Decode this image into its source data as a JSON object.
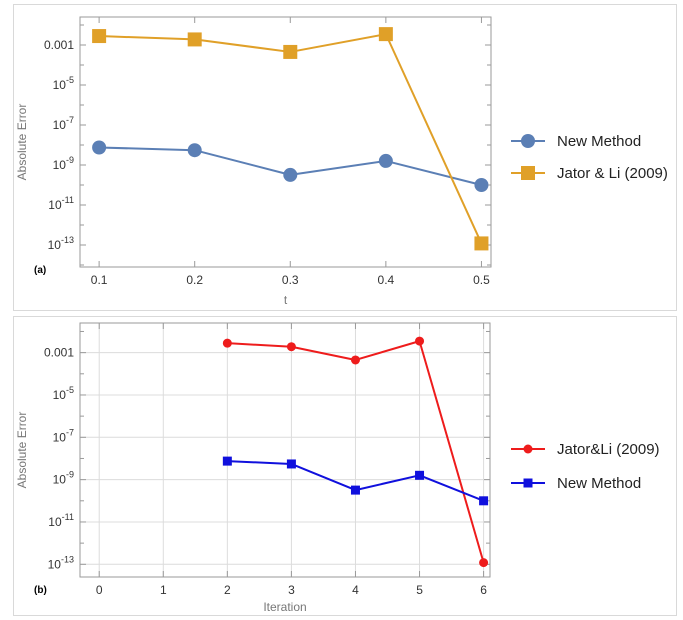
{
  "chart_data": [
    {
      "panel_label": "(a)",
      "type": "line",
      "xlabel": "t",
      "ylabel": "Absolute Error",
      "x_ticks": [
        "0.1",
        "0.2",
        "0.3",
        "0.4",
        "0.5"
      ],
      "y_ticks": [
        {
          "value": 0.001,
          "label": "0.001"
        },
        {
          "value": 1e-05,
          "base": "10",
          "exp": "-5"
        },
        {
          "value": 1e-07,
          "base": "10",
          "exp": "-7"
        },
        {
          "value": 1e-09,
          "base": "10",
          "exp": "-9"
        },
        {
          "value": 1e-11,
          "base": "10",
          "exp": "-11"
        },
        {
          "value": 1e-13,
          "base": "10",
          "exp": "-13"
        }
      ],
      "xlim": [
        0.08,
        0.51
      ],
      "ylim_log10": [
        -14.1,
        -1.6
      ],
      "scale_y": "log",
      "grid": false,
      "legend_position": "right",
      "series": [
        {
          "name": "New Method",
          "color": "#5b7fb5",
          "marker": "circle",
          "x": [
            0.1,
            0.2,
            0.3,
            0.4,
            0.5
          ],
          "y": [
            7.5e-09,
            5.5e-09,
            3.2e-10,
            1.6e-09,
            1e-10
          ]
        },
        {
          "name": "Jator & Li (2009)",
          "color": "#e0a028",
          "marker": "square",
          "x": [
            0.1,
            0.2,
            0.3,
            0.4,
            0.5
          ],
          "y": [
            0.0028,
            0.0019,
            0.00045,
            0.0035,
            1.2e-13
          ]
        }
      ]
    },
    {
      "panel_label": "(b)",
      "type": "line",
      "xlabel": "Iteration",
      "ylabel": "Absolute Error",
      "x_ticks": [
        "0",
        "1",
        "2",
        "3",
        "4",
        "5",
        "6"
      ],
      "y_ticks": [
        {
          "value": 0.001,
          "label": "0.001"
        },
        {
          "value": 1e-05,
          "base": "10",
          "exp": "-5"
        },
        {
          "value": 1e-07,
          "base": "10",
          "exp": "-7"
        },
        {
          "value": 1e-09,
          "base": "10",
          "exp": "-9"
        },
        {
          "value": 1e-11,
          "base": "10",
          "exp": "-11"
        },
        {
          "value": 1e-13,
          "base": "10",
          "exp": "-13"
        }
      ],
      "xlim": [
        -0.3,
        6.1
      ],
      "ylim_log10": [
        -13.6,
        -1.6
      ],
      "scale_y": "log",
      "grid": true,
      "legend_position": "right",
      "series": [
        {
          "name": "Jator&Li (2009)",
          "color": "#ee1c1c",
          "marker": "circle",
          "x": [
            2,
            3,
            4,
            5,
            6
          ],
          "y": [
            0.0028,
            0.0019,
            0.00045,
            0.0035,
            1.2e-13
          ]
        },
        {
          "name": "New Method",
          "color": "#1010dd",
          "marker": "square",
          "x": [
            2,
            3,
            4,
            5,
            6
          ],
          "y": [
            7.5e-09,
            5.5e-09,
            3.2e-10,
            1.6e-09,
            1e-10
          ]
        }
      ]
    }
  ]
}
